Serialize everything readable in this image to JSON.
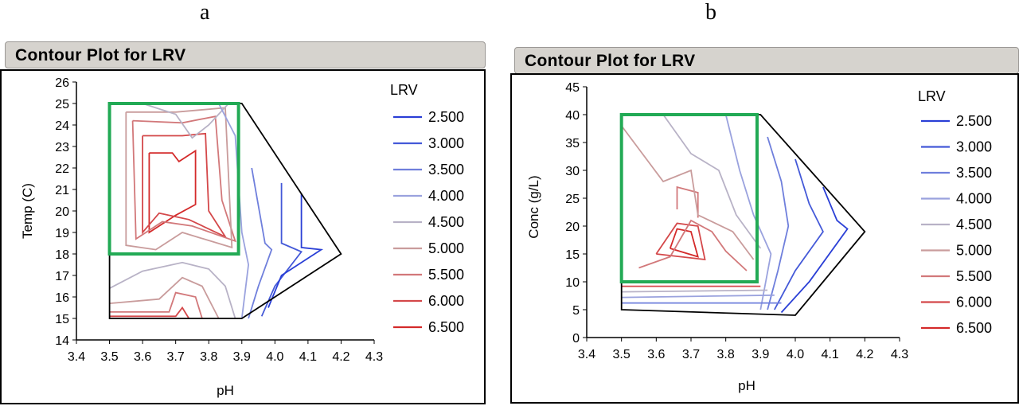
{
  "panels": [
    {
      "letter": "a",
      "title": "Contour Plot for LRV",
      "chart_data": {
        "type": "contour",
        "xlabel": "pH",
        "ylabel": "Temp (C)",
        "xlim": [
          3.4,
          4.3
        ],
        "ylim": [
          14,
          26
        ],
        "xticks": [
          "3.4",
          "3.5",
          "3.6",
          "3.7",
          "3.8",
          "3.9",
          "4.0",
          "4.1",
          "4.2",
          "4.3"
        ],
        "yticks": [
          "14",
          "15",
          "16",
          "17",
          "18",
          "19",
          "20",
          "21",
          "22",
          "23",
          "24",
          "25",
          "26"
        ],
        "legend_title": "LRV",
        "levels": [
          "2.500",
          "3.000",
          "3.500",
          "4.000",
          "4.500",
          "5.000",
          "5.500",
          "6.000",
          "6.500"
        ],
        "level_colors": [
          "#2a3fd6",
          "#4459d8",
          "#6f7fdc",
          "#9aa2de",
          "#b8b2c6",
          "#c99c9c",
          "#d2787a",
          "#d4484a",
          "#d42a2a"
        ],
        "domain_boundary": [
          [
            3.5,
            25
          ],
          [
            3.9,
            25
          ],
          [
            4.2,
            18
          ],
          [
            3.9,
            15
          ],
          [
            3.5,
            15
          ]
        ],
        "highlight_box": {
          "x": [
            3.5,
            3.89
          ],
          "y": [
            18,
            25
          ],
          "color": "#22aa55"
        },
        "contours": [
          {
            "level": 6.5,
            "points": [
              [
                3.62,
                22.7
              ],
              [
                3.69,
                22.7
              ],
              [
                3.71,
                22.3
              ],
              [
                3.76,
                22.8
              ],
              [
                3.76,
                20.3
              ],
              [
                3.7,
                19.8
              ],
              [
                3.62,
                19.0
              ],
              [
                3.62,
                22.7
              ]
            ]
          },
          {
            "level": 6.0,
            "points": [
              [
                3.6,
                23.5
              ],
              [
                3.72,
                23.5
              ],
              [
                3.79,
                23.6
              ],
              [
                3.8,
                20.0
              ],
              [
                3.85,
                18.8
              ],
              [
                3.74,
                19.6
              ],
              [
                3.65,
                19.9
              ],
              [
                3.6,
                19.0
              ],
              [
                3.6,
                23.5
              ]
            ]
          },
          {
            "level": 5.5,
            "points": [
              [
                3.57,
                24.2
              ],
              [
                3.72,
                24.1
              ],
              [
                3.82,
                24.4
              ],
              [
                3.84,
                20.5
              ],
              [
                3.88,
                18.6
              ],
              [
                3.75,
                19.3
              ],
              [
                3.66,
                19.5
              ],
              [
                3.58,
                18.7
              ],
              [
                3.57,
                24.2
              ]
            ]
          },
          {
            "level": 5.0,
            "points": [
              [
                3.55,
                24.6
              ],
              [
                3.7,
                24.6
              ],
              [
                3.85,
                24.8
              ],
              [
                3.87,
                18.3
              ],
              [
                3.72,
                19.0
              ],
              [
                3.64,
                18.2
              ],
              [
                3.55,
                18.4
              ],
              [
                3.55,
                24.6
              ]
            ]
          },
          {
            "level": 4.5,
            "points": [
              [
                3.6,
                25.0
              ],
              [
                3.7,
                24.5
              ],
              [
                3.75,
                23.4
              ],
              [
                3.8,
                24.0
              ],
              [
                3.86,
                25.0
              ]
            ]
          },
          {
            "level": 4.0,
            "points": [
              [
                3.83,
                25.0
              ],
              [
                3.88,
                23.5
              ],
              [
                3.9,
                19.0
              ],
              [
                3.92,
                17.5
              ],
              [
                3.9,
                15.0
              ]
            ]
          },
          {
            "level": 3.5,
            "points": [
              [
                3.93,
                22.0
              ],
              [
                3.97,
                18.5
              ],
              [
                3.99,
                18.2
              ],
              [
                3.95,
                16.5
              ],
              [
                3.92,
                15.0
              ]
            ]
          },
          {
            "level": 3.0,
            "points": [
              [
                4.02,
                21.3
              ],
              [
                4.02,
                18.5
              ],
              [
                4.08,
                18.1
              ],
              [
                4.0,
                16.5
              ],
              [
                3.96,
                15.1
              ]
            ]
          },
          {
            "level": 2.5,
            "points": [
              [
                4.08,
                20.8
              ],
              [
                4.08,
                18.3
              ],
              [
                4.14,
                18.2
              ],
              [
                4.02,
                17.0
              ],
              [
                3.98,
                15.5
              ]
            ]
          },
          {
            "level": 4.5,
            "points": [
              [
                3.5,
                16.4
              ],
              [
                3.6,
                17.2
              ],
              [
                3.72,
                17.6
              ],
              [
                3.8,
                17.3
              ],
              [
                3.85,
                16.5
              ],
              [
                3.88,
                15.0
              ]
            ]
          },
          {
            "level": 5.0,
            "points": [
              [
                3.5,
                15.7
              ],
              [
                3.65,
                15.9
              ],
              [
                3.72,
                16.9
              ],
              [
                3.78,
                16.5
              ],
              [
                3.83,
                15.0
              ]
            ]
          },
          {
            "level": 5.5,
            "points": [
              [
                3.5,
                15.3
              ],
              [
                3.68,
                15.3
              ],
              [
                3.7,
                16.2
              ],
              [
                3.76,
                16.0
              ],
              [
                3.78,
                15.0
              ]
            ]
          },
          {
            "level": 6.0,
            "points": [
              [
                3.5,
                15.1
              ],
              [
                3.7,
                15.1
              ],
              [
                3.72,
                15.5
              ],
              [
                3.74,
                15.0
              ]
            ]
          }
        ]
      }
    },
    {
      "letter": "b",
      "title": "Contour Plot for LRV",
      "chart_data": {
        "type": "contour",
        "xlabel": "pH",
        "ylabel": "Conc (g/L)",
        "xlim": [
          3.4,
          4.3
        ],
        "ylim": [
          0,
          45
        ],
        "xticks": [
          "3.4",
          "3.5",
          "3.6",
          "3.7",
          "3.8",
          "3.9",
          "4.0",
          "4.1",
          "4.2",
          "4.3"
        ],
        "yticks": [
          "0",
          "5",
          "10",
          "15",
          "20",
          "25",
          "30",
          "35",
          "40",
          "45"
        ],
        "legend_title": "LRV",
        "levels": [
          "2.500",
          "3.000",
          "3.500",
          "4.000",
          "4.500",
          "5.000",
          "5.500",
          "6.000",
          "6.500"
        ],
        "level_colors": [
          "#2a3fd6",
          "#4459d8",
          "#6f7fdc",
          "#9aa2de",
          "#b8b2c6",
          "#c99c9c",
          "#d2787a",
          "#d4484a",
          "#d42a2a"
        ],
        "domain_boundary": [
          [
            3.5,
            40
          ],
          [
            3.9,
            40
          ],
          [
            4.2,
            19
          ],
          [
            4.0,
            4
          ],
          [
            3.5,
            5
          ]
        ],
        "highlight_box": {
          "x": [
            3.5,
            3.89
          ],
          "y": [
            10,
            40
          ],
          "color": "#22aa55"
        },
        "contours": [
          {
            "level": 6.5,
            "points": [
              [
                3.64,
                16.0
              ],
              [
                3.66,
                19.5
              ],
              [
                3.7,
                19.0
              ],
              [
                3.72,
                14.5
              ],
              [
                3.64,
                16.0
              ]
            ]
          },
          {
            "level": 6.0,
            "points": [
              [
                3.6,
                15.0
              ],
              [
                3.66,
                20.5
              ],
              [
                3.72,
                20.0
              ],
              [
                3.74,
                14.0
              ],
              [
                3.6,
                15.0
              ]
            ]
          },
          {
            "level": 5.5,
            "points": [
              [
                3.55,
                12.5
              ],
              [
                3.64,
                14.5
              ],
              [
                3.7,
                21.0
              ],
              [
                3.76,
                19.0
              ],
              [
                3.8,
                15.5
              ],
              [
                3.86,
                12.0
              ]
            ]
          },
          {
            "level": 5.5,
            "points": [
              [
                3.66,
                23.0
              ],
              [
                3.66,
                27.0
              ],
              [
                3.72,
                26.0
              ],
              [
                3.72,
                21.5
              ]
            ]
          },
          {
            "level": 5.0,
            "points": [
              [
                3.5,
                38.0
              ],
              [
                3.62,
                28.0
              ],
              [
                3.7,
                30.0
              ],
              [
                3.72,
                22.0
              ],
              [
                3.82,
                19.0
              ],
              [
                3.88,
                14.0
              ]
            ]
          },
          {
            "level": 4.5,
            "points": [
              [
                3.62,
                40.0
              ],
              [
                3.7,
                33.0
              ],
              [
                3.78,
                30.0
              ],
              [
                3.83,
                22.0
              ],
              [
                3.9,
                16.0
              ]
            ]
          },
          {
            "level": 4.0,
            "points": [
              [
                3.8,
                40.0
              ],
              [
                3.84,
                30.0
              ],
              [
                3.88,
                22.0
              ],
              [
                3.93,
                15.0
              ],
              [
                3.9,
                5.0
              ]
            ]
          },
          {
            "level": 3.5,
            "points": [
              [
                3.92,
                36.0
              ],
              [
                3.96,
                28.0
              ],
              [
                3.98,
                20.0
              ],
              [
                3.95,
                12.0
              ],
              [
                3.92,
                5.0
              ]
            ]
          },
          {
            "level": 3.0,
            "points": [
              [
                4.0,
                32.0
              ],
              [
                4.04,
                24.0
              ],
              [
                4.08,
                19.0
              ],
              [
                4.0,
                12.0
              ],
              [
                3.94,
                5.0
              ]
            ]
          },
          {
            "level": 2.5,
            "points": [
              [
                4.08,
                27.0
              ],
              [
                4.12,
                21.0
              ],
              [
                4.15,
                19.5
              ],
              [
                4.04,
                10.0
              ],
              [
                3.96,
                4.5
              ]
            ]
          },
          {
            "level": 5.5,
            "points": [
              [
                3.5,
                10.0
              ],
              [
                3.7,
                10.0
              ],
              [
                3.88,
                10.0
              ]
            ]
          },
          {
            "level": 6.0,
            "points": [
              [
                3.5,
                9.2
              ],
              [
                3.9,
                9.2
              ]
            ]
          },
          {
            "level": 4.5,
            "points": [
              [
                3.5,
                8.2
              ],
              [
                3.92,
                8.5
              ]
            ]
          },
          {
            "level": 4.0,
            "points": [
              [
                3.5,
                7.2
              ],
              [
                3.94,
                7.6
              ]
            ]
          },
          {
            "level": 3.5,
            "points": [
              [
                3.5,
                6.2
              ],
              [
                3.96,
                6.2
              ]
            ]
          }
        ]
      }
    }
  ]
}
